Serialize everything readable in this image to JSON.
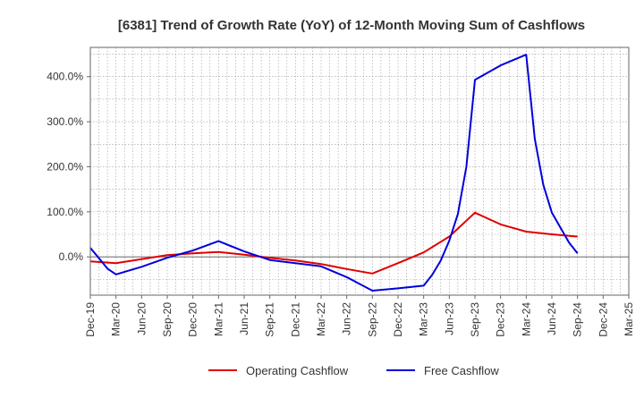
{
  "chart_data": {
    "type": "line",
    "title": "[6381]  Trend of Growth Rate (YoY) of 12-Month Moving Sum of Cashflows",
    "xlabel": "",
    "ylabel": "",
    "ylim": [
      -85,
      465
    ],
    "y_ticks": [
      {
        "value": 0,
        "label": "0.0%"
      },
      {
        "value": 100,
        "label": "100.0%"
      },
      {
        "value": 200,
        "label": "200.0%"
      },
      {
        "value": 300,
        "label": "300.0%"
      },
      {
        "value": 400,
        "label": "400.0%"
      }
    ],
    "x_ticks": [
      "Dec-19",
      "Mar-20",
      "Jun-20",
      "Sep-20",
      "Dec-20",
      "Mar-21",
      "Jun-21",
      "Sep-21",
      "Dec-21",
      "Mar-22",
      "Jun-22",
      "Sep-22",
      "Dec-22",
      "Mar-23",
      "Jun-23",
      "Sep-23",
      "Dec-23",
      "Mar-24",
      "Jun-24",
      "Sep-24",
      "Dec-24",
      "Mar-25"
    ],
    "grid": true,
    "legend_position": "bottom",
    "series": [
      {
        "name": "Operating Cashflow",
        "color": "#e00000",
        "points": [
          {
            "x": "Dec-19",
            "y": -10
          },
          {
            "x": "Mar-20",
            "y": -14
          },
          {
            "x": "Jun-20",
            "y": -5
          },
          {
            "x": "Sep-20",
            "y": 4
          },
          {
            "x": "Dec-20",
            "y": 8
          },
          {
            "x": "Mar-21",
            "y": 11
          },
          {
            "x": "Jun-21",
            "y": 5
          },
          {
            "x": "Sep-21",
            "y": -2
          },
          {
            "x": "Dec-21",
            "y": -8
          },
          {
            "x": "Mar-22",
            "y": -16
          },
          {
            "x": "Jun-22",
            "y": -27
          },
          {
            "x": "Sep-22",
            "y": -37
          },
          {
            "x": "Dec-22",
            "y": -14
          },
          {
            "x": "Mar-23",
            "y": 10
          },
          {
            "x": "Jun-23",
            "y": 45
          },
          {
            "x": "Sep-23",
            "y": 98
          },
          {
            "x": "Dec-23",
            "y": 72
          },
          {
            "x": "Mar-24",
            "y": 56
          },
          {
            "x": "Jun-24",
            "y": 50
          },
          {
            "x": "Sep-24",
            "y": 45
          }
        ]
      },
      {
        "name": "Free Cashflow",
        "color": "#0000dd",
        "points": [
          {
            "x": "Dec-19",
            "y": 20
          },
          {
            "x": "Jan-20",
            "y": -3
          },
          {
            "x": "Feb-20",
            "y": -26
          },
          {
            "x": "Mar-20",
            "y": -39
          },
          {
            "x": "Jun-20",
            "y": -22
          },
          {
            "x": "Sep-20",
            "y": -2
          },
          {
            "x": "Dec-20",
            "y": 14
          },
          {
            "x": "Mar-21",
            "y": 35
          },
          {
            "x": "Jun-21",
            "y": 12
          },
          {
            "x": "Sep-21",
            "y": -7
          },
          {
            "x": "Dec-21",
            "y": -14
          },
          {
            "x": "Mar-22",
            "y": -21
          },
          {
            "x": "Jun-22",
            "y": -45
          },
          {
            "x": "Sep-22",
            "y": -75
          },
          {
            "x": "Dec-22",
            "y": -70
          },
          {
            "x": "Mar-23",
            "y": -64
          },
          {
            "x": "Apr-23",
            "y": -40
          },
          {
            "x": "May-23",
            "y": -8
          },
          {
            "x": "Jun-23",
            "y": 36
          },
          {
            "x": "Jul-23",
            "y": 95
          },
          {
            "x": "Aug-23",
            "y": 200
          },
          {
            "x": "Sep-23",
            "y": 393
          },
          {
            "x": "Dec-23",
            "y": 425
          },
          {
            "x": "Mar-24",
            "y": 449
          },
          {
            "x": "Apr-24",
            "y": 262
          },
          {
            "x": "May-24",
            "y": 160
          },
          {
            "x": "Jun-24",
            "y": 98
          },
          {
            "x": "Aug-24",
            "y": 32
          },
          {
            "x": "Sep-24",
            "y": 8
          }
        ]
      }
    ]
  }
}
